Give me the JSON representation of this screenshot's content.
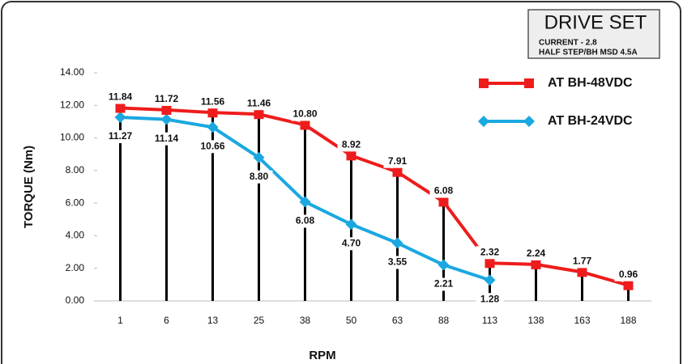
{
  "chart_data": {
    "type": "line",
    "y_label": "TORQUE (Nm)",
    "x_label": "RPM",
    "box_title": "DRIVE SET",
    "box_lines": [
      "CURRENT - 2.8",
      "HALF STEP/BH MSD 4.5A"
    ],
    "categories": [
      "1",
      "6",
      "13",
      "25",
      "38",
      "50",
      "63",
      "88",
      "113",
      "138",
      "163",
      "188"
    ],
    "series": [
      {
        "name": "AT BH-48VDC",
        "color": "#ee1c1c",
        "marker": "square",
        "values": [
          11.84,
          11.72,
          11.56,
          11.46,
          10.8,
          8.92,
          7.91,
          6.08,
          2.32,
          2.24,
          1.77,
          0.96
        ],
        "value_labels": [
          "11.84",
          "11.72",
          "11.56",
          "11.46",
          "10.80",
          "8.92",
          "7.91",
          "6.08",
          "2.32",
          "2.24",
          "1.77",
          "0.96"
        ]
      },
      {
        "name": "AT BH-24VDC",
        "color": "#1ba8e0",
        "marker": "diamond",
        "values": [
          11.27,
          11.14,
          10.66,
          8.8,
          6.08,
          4.7,
          3.55,
          2.21,
          1.28,
          null,
          null,
          null
        ],
        "value_labels": [
          "11.27",
          "11.14",
          "10.66",
          "8.80",
          "6.08",
          "4.70",
          "3.55",
          "2.21",
          "1.28",
          null,
          null,
          null
        ]
      }
    ],
    "ylim": [
      0,
      14
    ],
    "yticks": [
      {
        "value": 0,
        "label": "0.00"
      },
      {
        "value": 2,
        "label": "2.00"
      },
      {
        "value": 4,
        "label": "4.00"
      },
      {
        "value": 6,
        "label": "6.00"
      },
      {
        "value": 8,
        "label": "8.00"
      },
      {
        "value": 10,
        "label": "10.00"
      },
      {
        "value": 12,
        "label": "12.00"
      },
      {
        "value": 14,
        "label": "14.00"
      }
    ],
    "drop_lines": true
  }
}
